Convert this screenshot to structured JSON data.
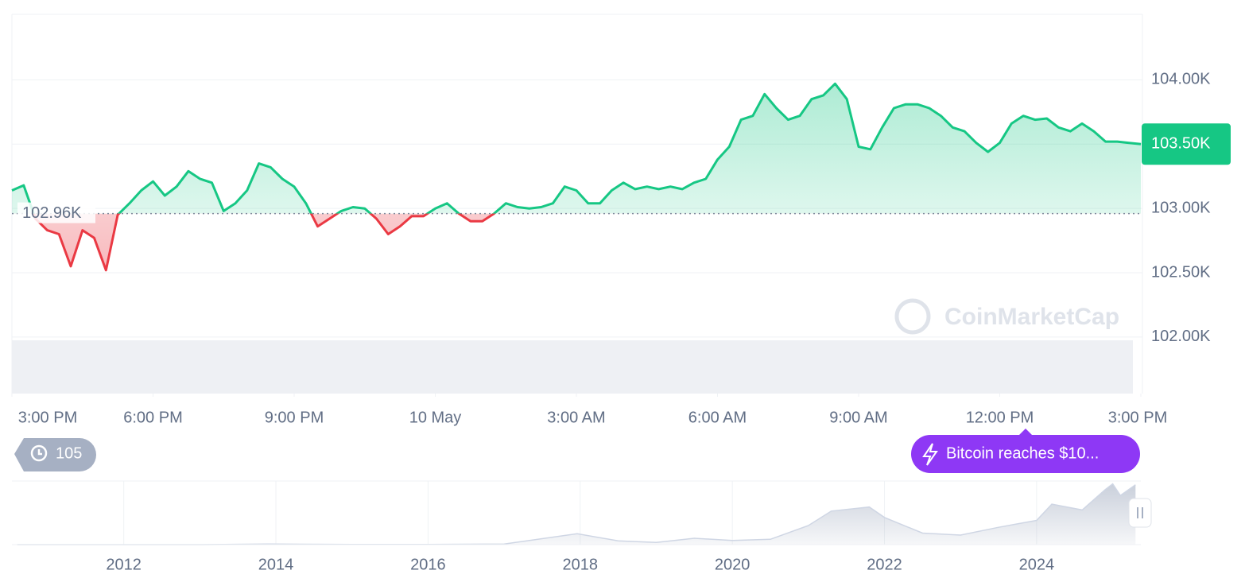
{
  "chart_data": {
    "type": "line",
    "values": [
      103140,
      103180,
      102920,
      102830,
      102800,
      102550,
      102830,
      102770,
      102520,
      102950,
      103040,
      103140,
      103210,
      103100,
      103170,
      103290,
      103230,
      103200,
      102980,
      103040,
      103140,
      103350,
      103320,
      103230,
      103170,
      103040,
      102860,
      102920,
      102980,
      103010,
      103000,
      102920,
      102800,
      102860,
      102940,
      102940,
      103000,
      103040,
      102960,
      102900,
      102900,
      102960,
      103040,
      103010,
      103000,
      103010,
      103040,
      103170,
      103140,
      103040,
      103040,
      103140,
      103200,
      103150,
      103170,
      103150,
      103170,
      103150,
      103200,
      103230,
      103380,
      103480,
      103690,
      103720,
      103890,
      103780,
      103690,
      103720,
      103850,
      103880,
      103970,
      103850,
      103480,
      103460,
      103630,
      103780,
      103810,
      103810,
      103780,
      103720,
      103630,
      103600,
      103510,
      103440,
      103510,
      103660,
      103720,
      103690,
      103700,
      103630,
      103600,
      103660,
      103600,
      103520,
      103520,
      103510,
      103500
    ],
    "color": "#16c784",
    "down_color": "#ea3943",
    "reference": 102960,
    "reference_label": "102.96K",
    "last_label": "103.50K",
    "xlim": [
      0,
      96
    ],
    "xticks": [
      {
        "value": 0,
        "label": "3:00 PM"
      },
      {
        "value": 12,
        "label": "6:00 PM"
      },
      {
        "value": 24,
        "label": "9:00 PM"
      },
      {
        "value": 36,
        "label": "10 May"
      },
      {
        "value": 48,
        "label": "3:00 AM"
      },
      {
        "value": 60,
        "label": "6:00 AM"
      },
      {
        "value": 72,
        "label": "9:00 AM"
      },
      {
        "value": 84,
        "label": "12:00 PM"
      },
      {
        "value": 96,
        "label": "3:00 PM"
      }
    ],
    "ylim": [
      101560,
      104510
    ],
    "yticks": [
      {
        "value": 102000,
        "label": "102.00K"
      },
      {
        "value": 102500,
        "label": "102.50K"
      },
      {
        "value": 103000,
        "label": "103.00K"
      },
      {
        "value": 103500,
        "label": "103.50K"
      },
      {
        "value": 104000,
        "label": "104.00K"
      }
    ],
    "grid": true,
    "watermark": "CoinMarketCap",
    "events_count": 105,
    "event_label": "Bitcoin reaches $10...",
    "navigator": {
      "x": [
        2010.6,
        2011,
        2012,
        2013,
        2013.9,
        2015,
        2016,
        2017,
        2017.96,
        2018.5,
        2019,
        2019.5,
        2020,
        2020.5,
        2021,
        2021.3,
        2021.8,
        2022,
        2022.5,
        2023,
        2023.5,
        2024,
        2024.2,
        2024.6,
        2024.9,
        2025,
        2025.1,
        2025.3
      ],
      "values": [
        0,
        5,
        5,
        13,
        1000,
        300,
        430,
        1000,
        19000,
        6500,
        3800,
        11000,
        7200,
        9200,
        33000,
        58000,
        65000,
        47000,
        20000,
        16500,
        30000,
        42000,
        70000,
        60000,
        95000,
        105000,
        85000,
        103500
      ],
      "xlim": [
        2010.53,
        2025.37
      ],
      "ylim": [
        0,
        110000
      ],
      "xticks": [
        2012,
        2014,
        2016,
        2018,
        2020,
        2022,
        2024
      ]
    }
  }
}
